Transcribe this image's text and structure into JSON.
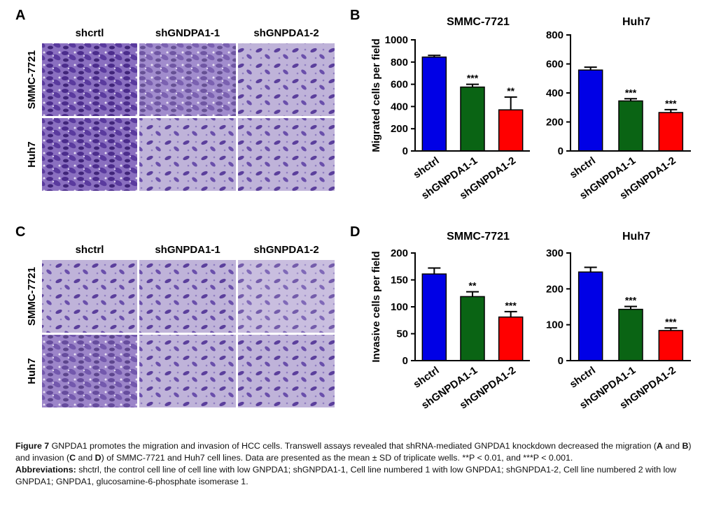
{
  "panels": {
    "a": "A",
    "b": "B",
    "c": "C",
    "d": "D"
  },
  "panel_a": {
    "columns": [
      "shcrtl",
      "shGNDPA1-1",
      "shGNPDA1-2"
    ],
    "rows": [
      "SMMC-7721",
      "Huh7"
    ]
  },
  "panel_c": {
    "columns": [
      "shctrl",
      "shGNPDA1-1",
      "shGNPDA1-2"
    ],
    "rows": [
      "SMMC-7721",
      "Huh7"
    ]
  },
  "chart_data": [
    {
      "type": "bar",
      "title": "SMMC-7721",
      "y_label": "Migrated cells per field",
      "categories": [
        "shctrl",
        "shGNPDA1-1",
        "shGNPDA1-2"
      ],
      "values": [
        845,
        575,
        370
      ],
      "errors": [
        15,
        25,
        115
      ],
      "significance": [
        null,
        "***",
        "**"
      ],
      "colors": [
        "#0000e6",
        "#0a6414",
        "#ff0000"
      ],
      "ylim": [
        0,
        1000
      ],
      "yticks": [
        0,
        200,
        400,
        600,
        800,
        1000
      ]
    },
    {
      "type": "bar",
      "title": "Huh7",
      "categories": [
        "shctrl",
        "shGNPDA1-1",
        "shGNPDA1-2"
      ],
      "values": [
        558,
        345,
        265
      ],
      "errors": [
        20,
        15,
        20
      ],
      "significance": [
        null,
        "***",
        "***"
      ],
      "colors": [
        "#0000e6",
        "#0a6414",
        "#ff0000"
      ],
      "ylim": [
        0,
        800
      ],
      "yticks": [
        0,
        200,
        400,
        600,
        800
      ]
    },
    {
      "type": "bar",
      "title": "SMMC-7721",
      "y_label": "Invasive cells per field",
      "categories": [
        "shctrl",
        "shGNPDA1-1",
        "shGNPDA1-2"
      ],
      "values": [
        161,
        119,
        81
      ],
      "errors": [
        11,
        9,
        10
      ],
      "significance": [
        null,
        "**",
        "***"
      ],
      "colors": [
        "#0000e6",
        "#0a6414",
        "#ff0000"
      ],
      "ylim": [
        0,
        200
      ],
      "yticks": [
        0,
        50,
        100,
        150,
        200
      ]
    },
    {
      "type": "bar",
      "title": "Huh7",
      "categories": [
        "shctrl",
        "shGNPDA1-1",
        "shGNPDA1-2"
      ],
      "values": [
        247,
        143,
        84
      ],
      "errors": [
        13,
        8,
        7
      ],
      "significance": [
        null,
        "***",
        "***"
      ],
      "colors": [
        "#0000e6",
        "#0a6414",
        "#ff0000"
      ],
      "ylim": [
        0,
        300
      ],
      "yticks": [
        0,
        100,
        200,
        300
      ]
    }
  ],
  "caption": {
    "figure": "Figure 7",
    "parts": [
      " GNPDA1 promotes the migration and invasion of HCC cells. Transwell assays revealed that shRNA-mediated GNPDA1 knockdown decreased the migration (",
      "A",
      " and ",
      "B",
      ") and invasion (",
      "C",
      " and ",
      "D",
      ") of SMMC-7721 and Huh7 cell lines. Data are presented as the mean ± SD of triplicate wells. **P < 0.01, and ***P < 0.001."
    ],
    "abbreviations_label": "Abbreviations:",
    "abbreviations": " shctrl, the control cell line of cell line with low GNPDA1; shGNPDA1-1, Cell line numbered 1 with low GNPDA1; shGNPDA1-2, Cell line numbered 2 with low GNPDA1; GNPDA1, glucosamine-6-phosphate isomerase 1."
  }
}
